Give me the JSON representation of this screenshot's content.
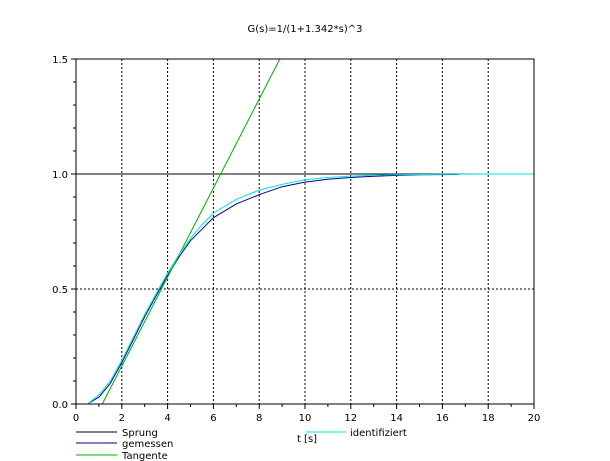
{
  "chart_data": {
    "type": "line",
    "title": "G(s)=1/(1+1.342*s)^3",
    "xlabel": "t [s]",
    "ylabel": "",
    "xlim": [
      0,
      20
    ],
    "ylim": [
      0,
      1.5
    ],
    "x_ticks": [
      "0",
      "2",
      "4",
      "6",
      "8",
      "10",
      "12",
      "14",
      "16",
      "18",
      "20"
    ],
    "y_ticks": [
      "0.0",
      "0.5",
      "1.0",
      "1.5"
    ],
    "grid": true,
    "series": [
      {
        "name": "Sprung",
        "color": "#000000",
        "x": [
          0,
          20
        ],
        "y": [
          1,
          1
        ]
      },
      {
        "name": "gemessen",
        "color": "#00008b",
        "x": [
          0.5,
          1.0,
          1.5,
          2.0,
          2.5,
          3.0,
          3.5,
          4.0,
          4.5,
          5.0,
          5.5,
          6.0,
          7.0,
          8.0,
          9.0,
          10.0,
          11.0,
          12.0,
          13.0,
          14.0,
          15.0,
          16.7
        ],
        "y": [
          0.0,
          0.03,
          0.09,
          0.18,
          0.28,
          0.38,
          0.47,
          0.56,
          0.64,
          0.71,
          0.76,
          0.81,
          0.87,
          0.91,
          0.945,
          0.965,
          0.977,
          0.985,
          0.99,
          0.994,
          0.997,
          0.998
        ]
      },
      {
        "name": "Tangente",
        "color": "#00b000",
        "x": [
          1.15,
          8.9
        ],
        "y": [
          0.0,
          1.5
        ]
      },
      {
        "name": "identifiziert",
        "color": "#00e5e5",
        "x": [
          0.5,
          1.0,
          1.5,
          2.0,
          2.5,
          3.0,
          3.5,
          4.0,
          4.5,
          5.0,
          5.5,
          6.0,
          7.0,
          8.0,
          9.0,
          10.0,
          11.0,
          12.0,
          13.0,
          14.0,
          16.0,
          18.0,
          20.0
        ],
        "y": [
          0.0,
          0.04,
          0.1,
          0.19,
          0.29,
          0.39,
          0.48,
          0.57,
          0.65,
          0.72,
          0.78,
          0.83,
          0.89,
          0.93,
          0.955,
          0.975,
          0.985,
          0.991,
          0.995,
          0.997,
          0.999,
          1.0,
          1.0
        ]
      }
    ]
  }
}
